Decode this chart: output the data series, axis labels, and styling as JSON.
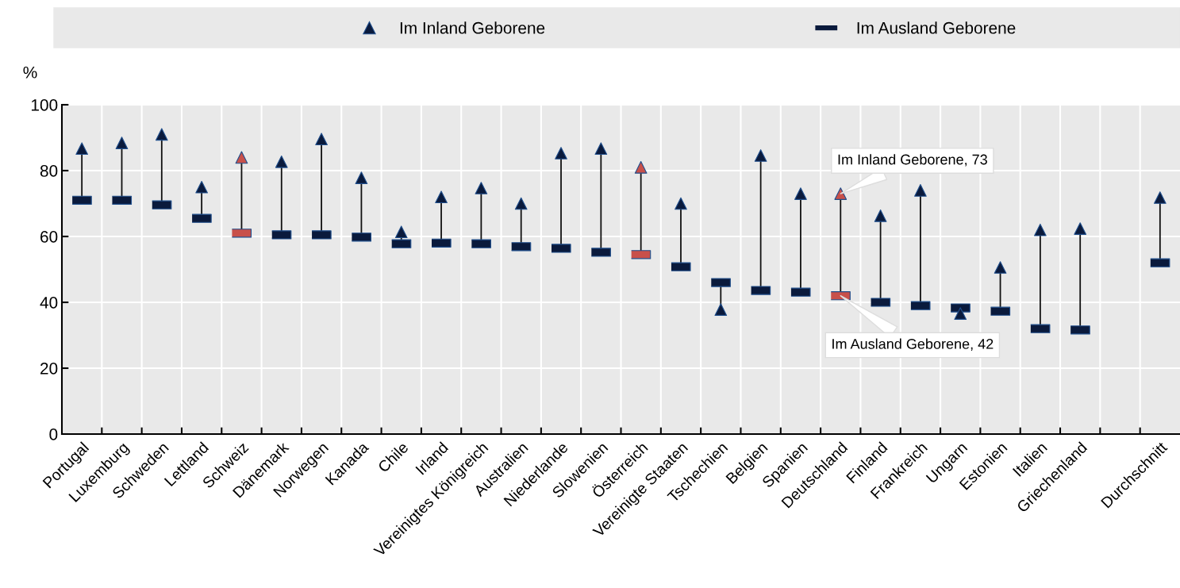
{
  "chart_data": {
    "type": "scatter",
    "ylabel": "%",
    "categories": [
      "Portugal",
      "Luxemburg",
      "Schweden",
      "Lettland",
      "Schweiz",
      "Dänemark",
      "Norwegen",
      "Kanada",
      "Chile",
      "Irland",
      "Vereinigtes Königreich",
      "Australien",
      "Niederlande",
      "Slowenien",
      "Österreich",
      "Vereinigte Staaten",
      "Tschechien",
      "Belgien",
      "Spanien",
      "Deutschland",
      "Finland",
      "Frankreich",
      "Ungarn",
      "Estonien",
      "Italien",
      "Griechenland",
      null,
      "Durchschnitt"
    ],
    "series": [
      {
        "name": "Im Inland Geborene",
        "marker": "triangle",
        "color": "#0a1a3c",
        "colors": [
          "#0a1a3c",
          "#0a1a3c",
          "#0a1a3c",
          "#0a1a3c",
          "#c8504a",
          "#0a1a3c",
          "#0a1a3c",
          "#0a1a3c",
          "#0a1a3c",
          "#0a1a3c",
          "#0a1a3c",
          "#0a1a3c",
          "#0a1a3c",
          "#0a1a3c",
          "#c8504a",
          "#0a1a3c",
          "#0a1a3c",
          "#0a1a3c",
          "#0a1a3c",
          "#c8504a",
          "#0a1a3c",
          "#0a1a3c",
          "#0a1a3c",
          "#0a1a3c",
          "#0a1a3c",
          "#0a1a3c",
          "#0a1a3c",
          "#0a1a3c"
        ],
        "values": [
          86.7,
          88.4,
          91,
          75,
          84,
          82.7,
          89.6,
          77.8,
          61.4,
          72,
          74.7,
          70,
          85.3,
          86.7,
          81,
          70,
          37.8,
          84.6,
          73,
          73,
          66.3,
          74,
          36.6,
          50.6,
          62,
          62.4,
          null,
          71.8
        ]
      },
      {
        "name": "Im Ausland Geborene",
        "color": "#0a1a3c",
        "colors": [
          "#0a1a3c",
          "#0a1a3c",
          "#0a1a3c",
          "#0a1a3c",
          "#c8504a",
          "#0a1a3c",
          "#0a1a3c",
          "#0a1a3c",
          "#0a1a3c",
          "#0a1a3c",
          "#0a1a3c",
          "#0a1a3c",
          "#0a1a3c",
          "#0a1a3c",
          "#c8504a",
          "#0a1a3c",
          "#0a1a3c",
          "#0a1a3c",
          "#0a1a3c",
          "#c8504a",
          "#0a1a3c",
          "#0a1a3c",
          "#0a1a3c",
          "#0a1a3c",
          "#0a1a3c",
          "#0a1a3c",
          "#0a1a3c",
          "#0a1a3c"
        ],
        "values": [
          71,
          71,
          69.6,
          65.5,
          61,
          60.5,
          60.5,
          59.8,
          57.8,
          58,
          57.8,
          56.9,
          56.4,
          55.2,
          54.5,
          50.8,
          46,
          43.6,
          43.1,
          42,
          40,
          39,
          38.3,
          37.3,
          32,
          31.6,
          null,
          52
        ]
      }
    ],
    "ylim": [
      0,
      100
    ],
    "yticks": [
      0,
      20,
      40,
      60,
      80,
      100
    ],
    "grid": true,
    "legend": "top",
    "annotations": [
      {
        "text": "Im Inland Geborene, 73",
        "x": "Deutschland",
        "y": 73
      },
      {
        "text": "Im Ausland Geborene, 42",
        "x": "Deutschland",
        "y": 42
      }
    ]
  }
}
